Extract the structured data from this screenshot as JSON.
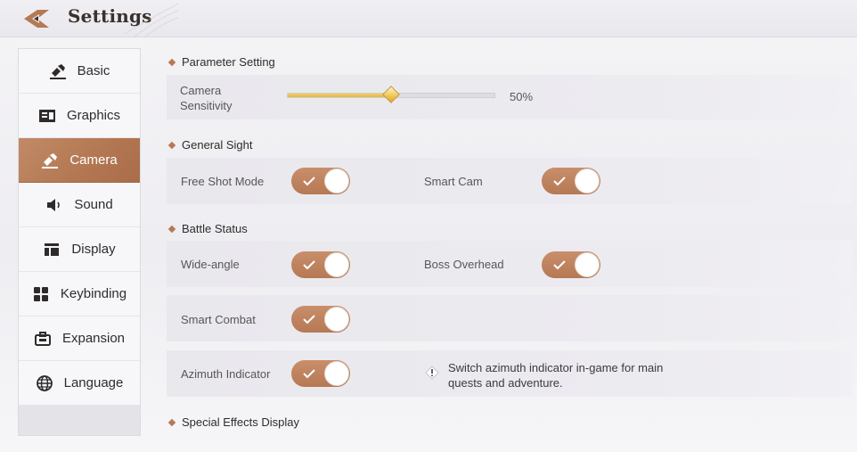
{
  "header": {
    "title": "Settings"
  },
  "sidebar": {
    "items": [
      {
        "label": "Basic",
        "icon": "hammer-icon",
        "active": false
      },
      {
        "label": "Graphics",
        "icon": "image-icon",
        "active": false
      },
      {
        "label": "Camera",
        "icon": "hammer-icon",
        "active": true
      },
      {
        "label": "Sound",
        "icon": "speaker-icon",
        "active": false
      },
      {
        "label": "Display",
        "icon": "layout-icon",
        "active": false
      },
      {
        "label": "Keybinding",
        "icon": "grid-icon",
        "active": false
      },
      {
        "label": "Expansion",
        "icon": "briefcase-icon",
        "active": false
      },
      {
        "label": "Language",
        "icon": "globe-icon",
        "active": false
      }
    ]
  },
  "sections": {
    "parameter": "Parameter Setting",
    "general_sight": "General Sight",
    "battle_status": "Battle Status",
    "special_effects": "Special Effects Display"
  },
  "camera_sensitivity": {
    "label_line1": "Camera",
    "label_line2": "Sensitivity",
    "value": 0.5,
    "value_text": "50%"
  },
  "toggles": {
    "free_shot_mode": {
      "label": "Free Shot Mode",
      "on": true
    },
    "smart_cam": {
      "label": "Smart Cam",
      "on": true
    },
    "wide_angle": {
      "label": "Wide-angle",
      "on": true
    },
    "boss_overhead": {
      "label": "Boss Overhead",
      "on": true
    },
    "smart_combat": {
      "label": "Smart Combat",
      "on": true
    },
    "azimuth_indicator": {
      "label": "Azimuth Indicator",
      "on": true
    }
  },
  "hint": {
    "line1": "Switch azimuth indicator in-game for main",
    "line2": "quests and adventure."
  },
  "colors": {
    "accent": "#b57954",
    "slider": "#e5b445",
    "active_nav": "#b27752"
  }
}
